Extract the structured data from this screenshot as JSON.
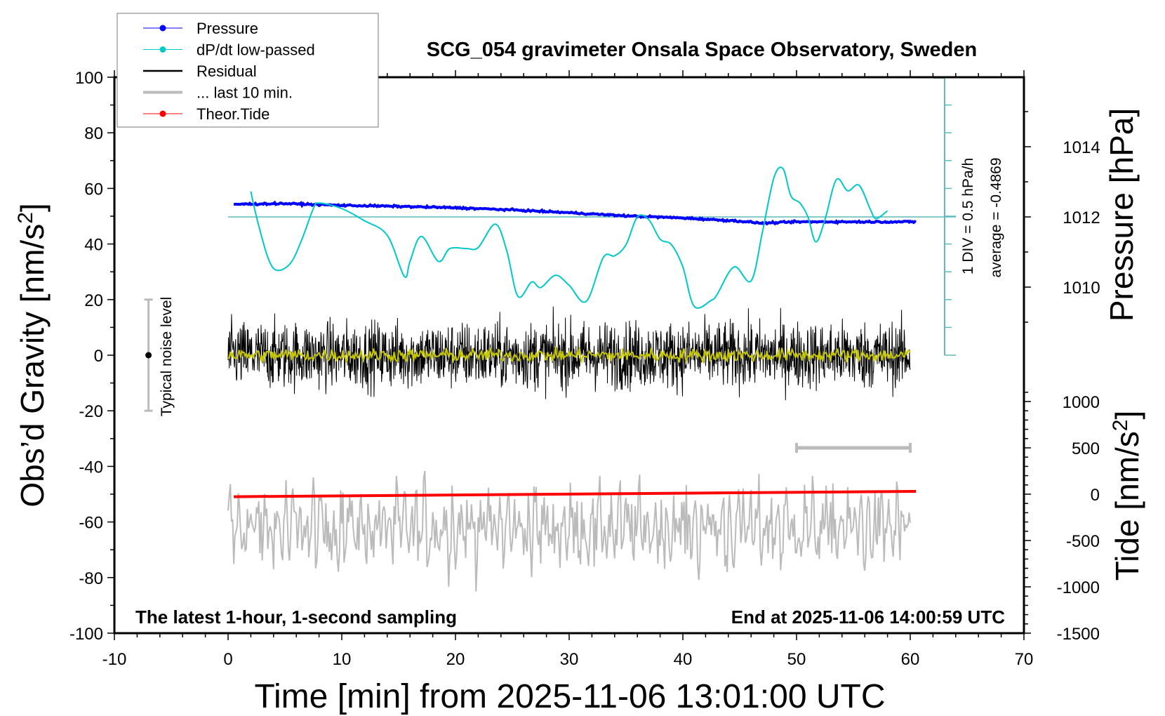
{
  "chart_data": {
    "type": "line",
    "title": "SCG_054 gravimeter Onsala Space Observatory, Sweden",
    "xlabel": "Time [min] from 2025-11-06 13:01:00 UTC",
    "ylabel": "Obs’d Gravity [nm/s",
    "ylabel_sup": "2",
    "ylabel_end": "]",
    "y2label": "Pressure [hPa]",
    "y3label": "Tide [nm/s",
    "y3label_sup": "2",
    "y3label_end": "]",
    "xlim": [
      -10,
      70
    ],
    "ylim": [
      -100,
      100
    ],
    "pressure_lim_ticks": [
      1010,
      1012,
      1014
    ],
    "tide_ticks": [
      1000,
      500,
      0,
      -500,
      -1000,
      -1500
    ],
    "x_ticks": [
      -10,
      0,
      10,
      20,
      30,
      40,
      50,
      60,
      70
    ],
    "y_ticks": [
      100,
      80,
      60,
      40,
      20,
      0,
      -20,
      -40,
      -60,
      -80,
      -100
    ],
    "annotations": {
      "bottom_left": "The latest 1-hour, 1-second sampling",
      "bottom_right": "End at 2025-11-06 14:00:59 UTC",
      "noise_label": "Typical noise level",
      "dpdt_scale": "1 DIV = 0.5 hPa/h",
      "dpdt_average": "average = -0.4869"
    },
    "noise_level_bar": {
      "x": -7,
      "y_range": [
        -20,
        20
      ]
    },
    "last10_marker": {
      "x_range": [
        50,
        60
      ],
      "tide": 500
    },
    "legend": {
      "position": "top-left",
      "entries": [
        {
          "label": "Pressure",
          "color": "#0000ff",
          "marker": "dot"
        },
        {
          "label": "dP/dt low-passed",
          "color": "#00c8c8",
          "marker": "dot"
        },
        {
          "label": "Residual",
          "color": "#000000",
          "marker": "line"
        },
        {
          "label": "... last 10 min.",
          "color": "#bbbbbb",
          "marker": "thick-line"
        },
        {
          "label": "Theor.Tide",
          "color": "#ff0000",
          "marker": "dot"
        }
      ]
    },
    "series": [
      {
        "name": "Pressure",
        "unit": "hPa",
        "color": "#0000ff",
        "x": [
          0.5,
          5,
          10,
          15,
          20,
          25,
          30,
          35,
          40,
          45,
          47,
          50,
          55,
          60.5
        ],
        "values": [
          1012.36,
          1012.38,
          1012.33,
          1012.3,
          1012.26,
          1012.2,
          1012.12,
          1012.03,
          1011.97,
          1011.88,
          1011.82,
          1011.86,
          1011.86,
          1011.86
        ]
      },
      {
        "name": "dP/dt low-passed",
        "unit": "hPa/h",
        "color": "#00c8c8",
        "x": [
          2,
          2.5,
          3.5,
          4.3,
          5.5,
          6.5,
          7.5,
          8,
          10,
          12,
          14,
          15.5,
          16,
          17,
          18.5,
          19.5,
          21,
          22,
          23.5,
          24.5,
          25.5,
          26.7,
          27.5,
          28.8,
          30,
          31.5,
          33,
          34,
          35,
          36,
          37,
          38,
          39,
          40,
          41,
          42.5,
          43,
          44.5,
          46,
          47,
          48,
          48.8,
          49.5,
          50.3,
          51,
          51.7,
          52.5,
          53.5,
          54.5,
          55.5,
          56.5,
          57,
          58
        ],
        "values": [
          0.46,
          0.0,
          -0.73,
          -0.96,
          -0.83,
          -0.4,
          0.15,
          0.25,
          0.15,
          -0.07,
          -0.33,
          -1.07,
          -0.8,
          -0.35,
          -0.8,
          -0.57,
          -0.57,
          -0.55,
          -0.13,
          -0.6,
          -1.43,
          -1.17,
          -1.27,
          -1.05,
          -1.23,
          -1.52,
          -0.73,
          -0.7,
          -0.5,
          0.0,
          -0.05,
          -0.4,
          -0.5,
          -0.9,
          -1.61,
          -1.5,
          -1.4,
          -0.9,
          -1.15,
          -0.27,
          0.7,
          0.87,
          0.38,
          0.25,
          0.0,
          -0.45,
          -0.05,
          0.67,
          0.47,
          0.57,
          0.13,
          -0.03,
          0.11
        ]
      },
      {
        "name": "Residual",
        "unit": "nm/s2",
        "color": "#000000",
        "x_range": [
          0,
          60
        ],
        "range": [
          -25,
          22
        ]
      },
      {
        "name": "Residual smoothed",
        "unit": "nm/s2",
        "color": "#c8c800",
        "x_range": [
          0,
          60
        ],
        "range": [
          -2,
          2
        ]
      },
      {
        "name": "... last 10 min.",
        "unit": "nm/s2",
        "color": "#bbbbbb",
        "x_range": [
          0,
          60
        ],
        "range": [
          -85,
          -40
        ]
      },
      {
        "name": "Theor.Tide",
        "unit": "nm/s2",
        "color": "#ff0000",
        "x": [
          0.5,
          60.5
        ],
        "values": [
          -27,
          30
        ]
      }
    ]
  }
}
